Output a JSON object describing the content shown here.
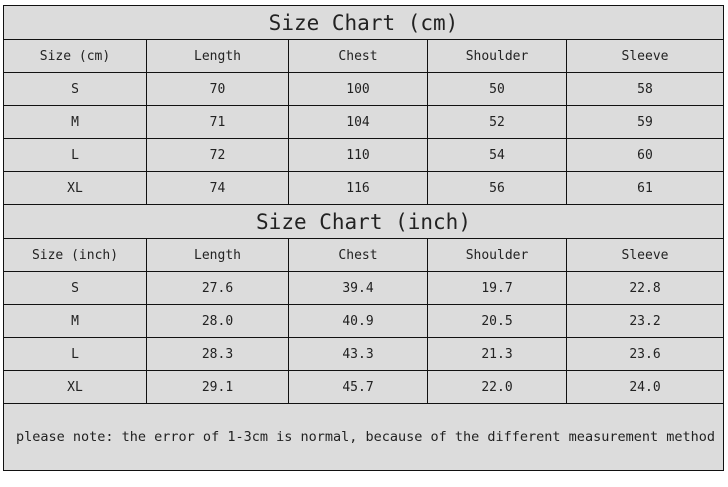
{
  "cm": {
    "title": "Size Chart (cm)",
    "headers": [
      "Size (cm)",
      "Length",
      "Chest",
      "Shoulder",
      "Sleeve"
    ],
    "rows": [
      [
        "S",
        "70",
        "100",
        "50",
        "58"
      ],
      [
        "M",
        "71",
        "104",
        "52",
        "59"
      ],
      [
        "L",
        "72",
        "110",
        "54",
        "60"
      ],
      [
        "XL",
        "74",
        "116",
        "56",
        "61"
      ]
    ]
  },
  "inch": {
    "title": "Size Chart (inch)",
    "headers": [
      "Size (inch)",
      "Length",
      "Chest",
      "Shoulder",
      "Sleeve"
    ],
    "rows": [
      [
        "S",
        "27.6",
        "39.4",
        "19.7",
        "22.8"
      ],
      [
        "M",
        "28.0",
        "40.9",
        "20.5",
        "23.2"
      ],
      [
        "L",
        "28.3",
        "43.3",
        "21.3",
        "23.6"
      ],
      [
        "XL",
        "29.1",
        "45.7",
        "22.0",
        "24.0"
      ]
    ]
  },
  "note": "please note: the error of 1-3cm is normal, because of the different measurement method"
}
